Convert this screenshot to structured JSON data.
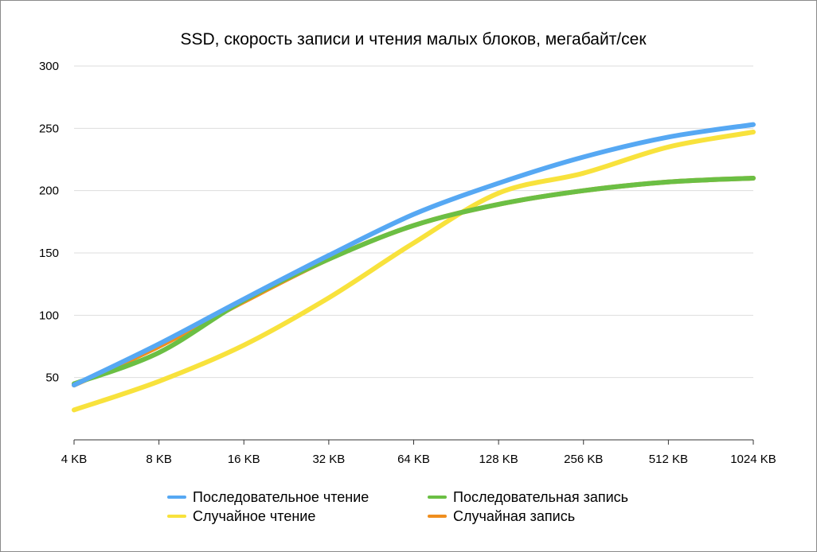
{
  "chart_data": {
    "type": "line",
    "title": "SSD, скорость записи и чтения малых блоков, мегабайт/сек",
    "xlabel": "",
    "ylabel": "",
    "categories": [
      "4 KB",
      "8 KB",
      "16 KB",
      "32 KB",
      "64 KB",
      "128 KB",
      "256 KB",
      "512 KB",
      "1024 KB"
    ],
    "y_ticks": [
      "50",
      "100",
      "150",
      "200",
      "250",
      "300"
    ],
    "ylim": [
      0,
      300
    ],
    "grid": true,
    "legend_position": "bottom",
    "series": [
      {
        "name": "Последовательное чтение",
        "color": "#56A8F3",
        "values": [
          44,
          77,
          113,
          148,
          181,
          206,
          227,
          243,
          253
        ]
      },
      {
        "name": "Последовательная запись",
        "color": "#6BBF44",
        "values": [
          45,
          70,
          112,
          145,
          172,
          189,
          200,
          207,
          210
        ]
      },
      {
        "name": "Случайное чтение",
        "color": "#F8E23C",
        "values": [
          24,
          47,
          76,
          114,
          158,
          198,
          214,
          235,
          247
        ]
      },
      {
        "name": "Случайная запись",
        "color": "#EF8E1F",
        "values": [
          44,
          75,
          111,
          145,
          172,
          189,
          200,
          207,
          210
        ]
      }
    ]
  }
}
